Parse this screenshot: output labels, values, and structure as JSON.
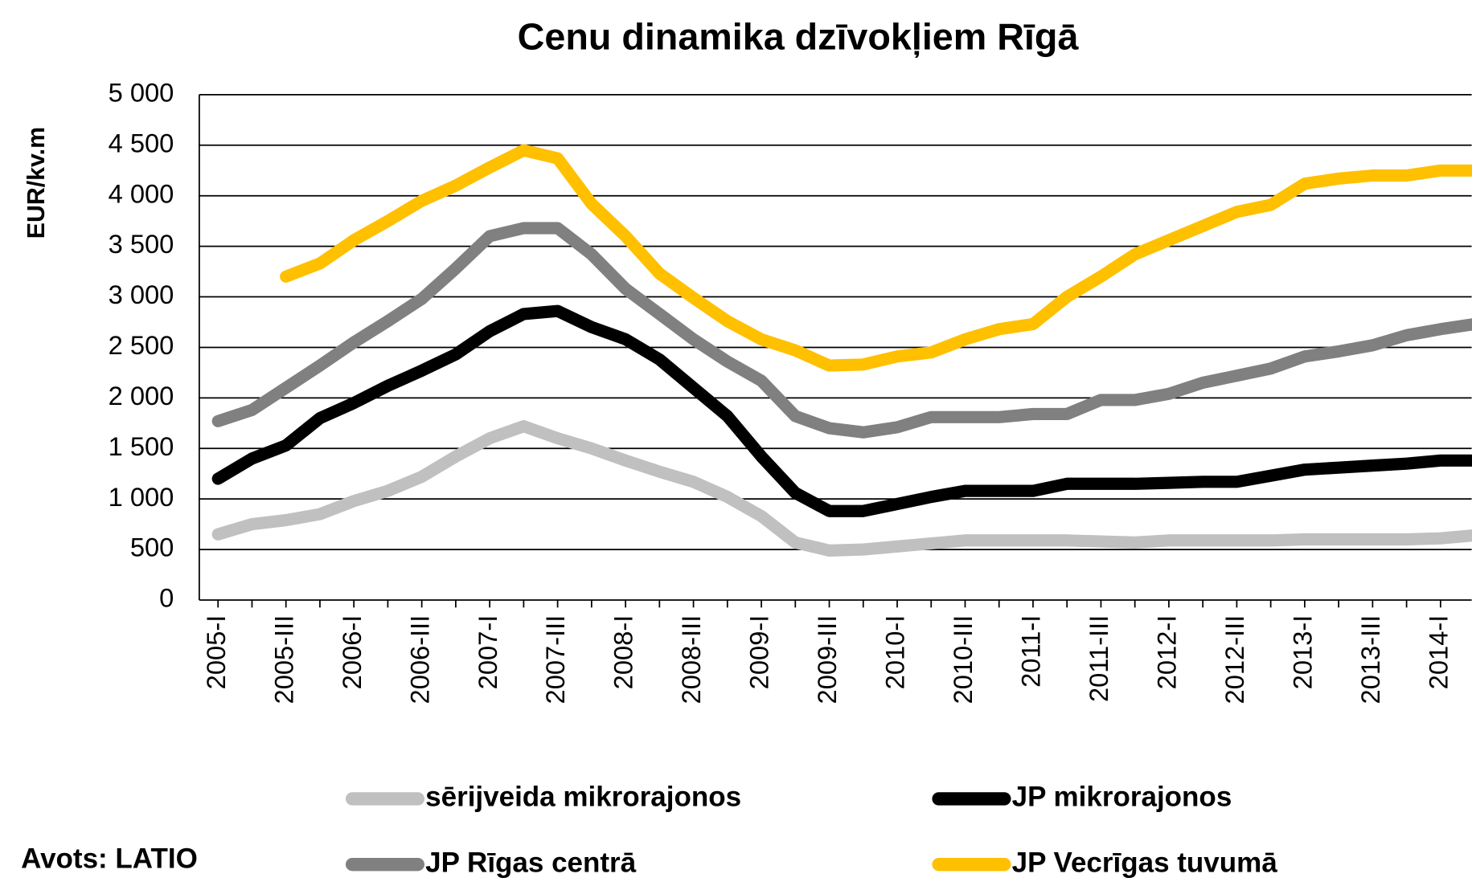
{
  "chart_data": {
    "type": "line",
    "title": "Cenu dinamika dzīvokļiem Rīgā",
    "y_label": "EUR/kv.m",
    "source": "Avots: LATIO",
    "categories": [
      "2005-I",
      null,
      "2005-III",
      null,
      "2006-I",
      null,
      "2006-III",
      null,
      "2007-I",
      null,
      "2007-III",
      null,
      "2008-I",
      null,
      "2008-III",
      null,
      "2009-I",
      null,
      "2009-III",
      null,
      "2010-I",
      null,
      "2010-III",
      null,
      "2011-I",
      null,
      "2011-III",
      null,
      "2012-I",
      null,
      "2012-III",
      null,
      "2013-I",
      null,
      "2013-III",
      null,
      "2014-I",
      null
    ],
    "series": [
      {
        "name": "sērijveida mikrorajonos",
        "color": "#c0c0c0",
        "values": [
          650,
          750,
          790,
          850,
          980,
          1080,
          1220,
          1420,
          1600,
          1720,
          1600,
          1500,
          1380,
          1270,
          1170,
          1020,
          830,
          570,
          490,
          500,
          530,
          560,
          590,
          590,
          590,
          590,
          580,
          570,
          590,
          590,
          590,
          590,
          600,
          600,
          600,
          600,
          610,
          640
        ]
      },
      {
        "name": "JP mikrorajonos",
        "color": "#000000",
        "values": [
          1200,
          1400,
          1530,
          1800,
          1950,
          2120,
          2270,
          2430,
          2660,
          2830,
          2860,
          2700,
          2580,
          2380,
          2100,
          1820,
          1420,
          1060,
          880,
          880,
          950,
          1020,
          1080,
          1080,
          1080,
          1150,
          1150,
          1150,
          1160,
          1170,
          1170,
          1230,
          1290,
          1310,
          1330,
          1350,
          1380,
          1380
        ]
      },
      {
        "name": "JP Rīgas centrā",
        "color": "#808080",
        "values": [
          1770,
          1880,
          2100,
          2320,
          2550,
          2760,
          2980,
          3280,
          3600,
          3680,
          3680,
          3420,
          3080,
          2830,
          2580,
          2360,
          2170,
          1820,
          1700,
          1660,
          1710,
          1810,
          1810,
          1810,
          1840,
          1840,
          1980,
          1980,
          2040,
          2150,
          2220,
          2290,
          2410,
          2460,
          2520,
          2620,
          2680,
          2730
        ]
      },
      {
        "name": "JP Vecrīgas tuvumā",
        "color": "#ffc000",
        "values": [
          null,
          null,
          3200,
          3330,
          3560,
          3750,
          3950,
          4100,
          4280,
          4450,
          4370,
          3920,
          3600,
          3230,
          2990,
          2760,
          2580,
          2470,
          2320,
          2330,
          2410,
          2450,
          2580,
          2680,
          2730,
          3000,
          3200,
          3420,
          3560,
          3700,
          3840,
          3910,
          4120,
          4170,
          4200,
          4200,
          4250,
          4250
        ]
      }
    ],
    "ylim": [
      0,
      5000
    ],
    "yticks": [
      0,
      500,
      {
        "value": 1000,
        "label": "1 000"
      },
      {
        "value": 1500,
        "label": "1 500"
      },
      {
        "value": 2000,
        "label": "2 000"
      },
      {
        "value": 2500,
        "label": "2 500"
      },
      {
        "value": 3000,
        "label": "3 000"
      },
      {
        "value": 3500,
        "label": "3 500"
      },
      {
        "value": 4000,
        "label": "4 000"
      },
      {
        "value": 4500,
        "label": "4 500"
      },
      {
        "value": 5000,
        "label": "5 000"
      }
    ],
    "grid": true,
    "legend": "bottom"
  }
}
